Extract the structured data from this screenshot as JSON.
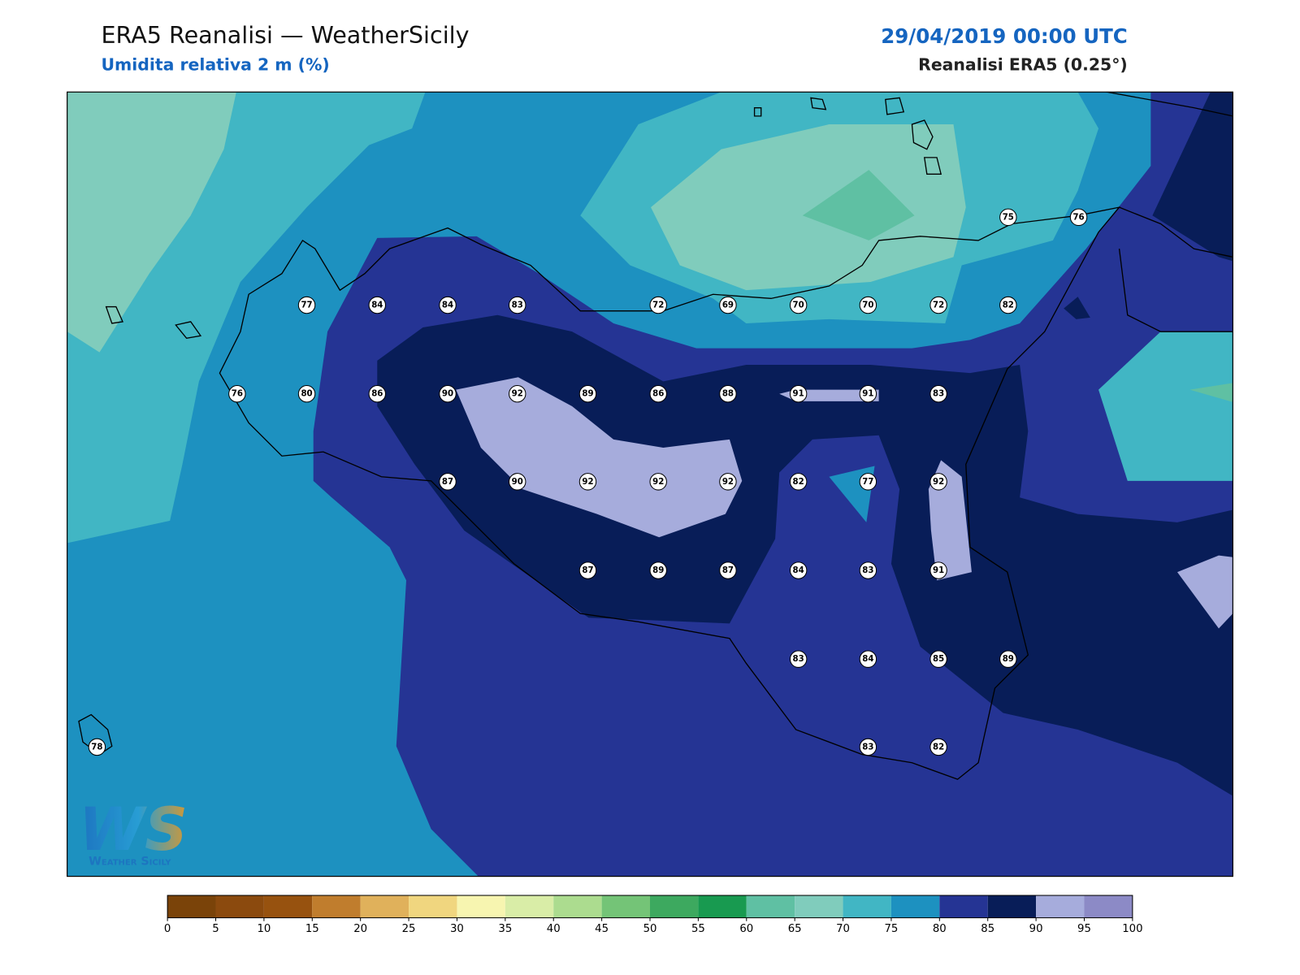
{
  "header": {
    "title": "ERA5 Reanalisi — WeatherSicily",
    "subtitle": "Umidita relativa 2 m (%)",
    "datetime": "29/04/2019 00:00 UTC",
    "source": "Reanalisi ERA5 (0.25°)"
  },
  "stations": [
    75,
    76,
    77,
    84,
    84,
    83,
    72,
    69,
    70,
    70,
    72,
    82,
    76,
    80,
    86,
    90,
    92,
    89,
    86,
    88,
    91,
    91,
    83,
    87,
    90,
    92,
    92,
    92,
    82,
    77,
    92,
    87,
    89,
    87,
    84,
    83,
    91,
    83,
    84,
    85,
    89,
    78,
    83,
    82
  ],
  "logo": {
    "mark": "WS",
    "text": "Weather Sicily"
  },
  "colorbar": {
    "ticks": [
      0,
      5,
      10,
      15,
      20,
      25,
      30,
      35,
      40,
      45,
      50,
      55,
      60,
      65,
      70,
      75,
      80,
      85,
      90,
      95,
      100
    ],
    "colors": [
      "#7a4309",
      "#8b4a0e",
      "#97520f",
      "#c07d2d",
      "#e0b15b",
      "#f0d67f",
      "#f7f5b0",
      "#d9eda7",
      "#acdc8f",
      "#74c477",
      "#3da95f",
      "#189a50",
      "#5fc0a3",
      "#80ccbc",
      "#41b6c4",
      "#1d91c0",
      "#253494",
      "#081d58",
      "#a6acdc",
      "#8c8ac6"
    ]
  }
}
